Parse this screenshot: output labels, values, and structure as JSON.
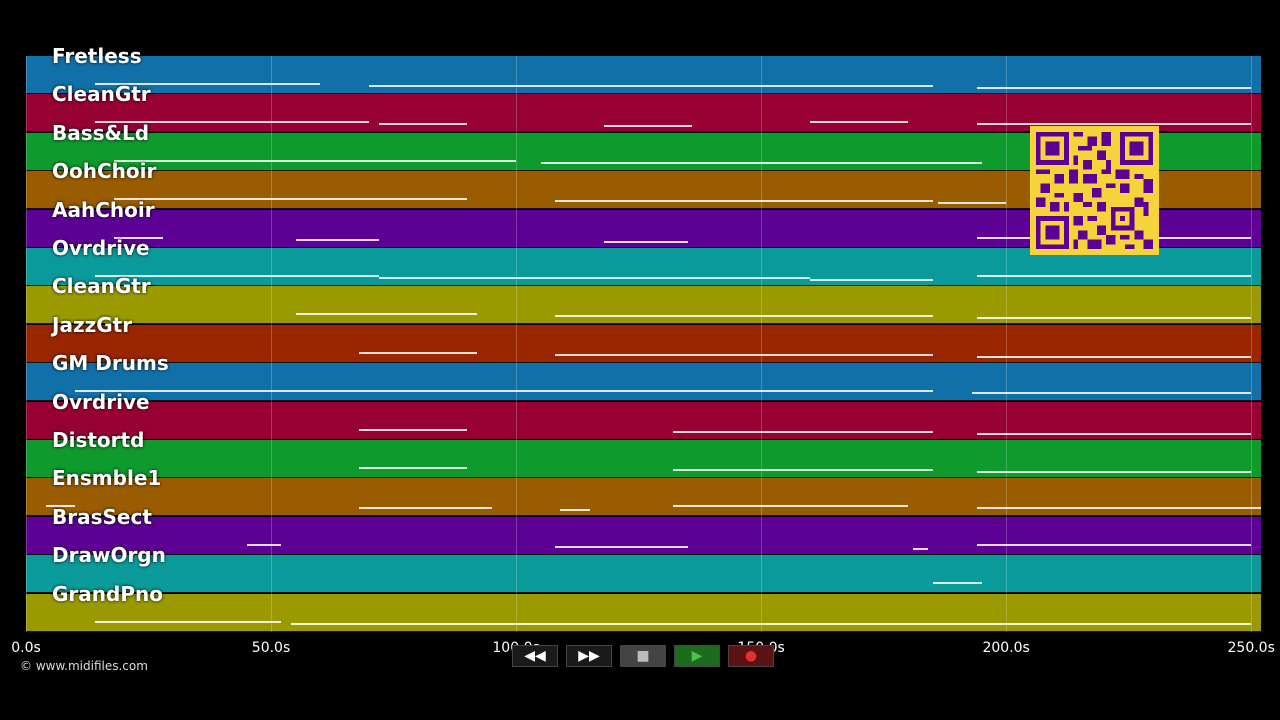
{
  "tracks": [
    {
      "name": "Fretless",
      "color": "#1170a8"
    },
    {
      "name": "CleanGtr",
      "color": "#960033"
    },
    {
      "name": "Bass&Ld",
      "color": "#0e9a2c"
    },
    {
      "name": "OohChoir",
      "color": "#9a5c00"
    },
    {
      "name": "AahChoir",
      "color": "#5d0094"
    },
    {
      "name": "Ovrdrive",
      "color": "#0a9a9a"
    },
    {
      "name": "CleanGtr",
      "color": "#9a9a00"
    },
    {
      "name": "JazzGtr",
      "color": "#9a2600"
    },
    {
      "name": "GM Drums",
      "color": "#1170a8"
    },
    {
      "name": "Ovrdrive",
      "color": "#960033"
    },
    {
      "name": "Distortd",
      "color": "#0e9a2c"
    },
    {
      "name": "Ensmble1",
      "color": "#9a5c00"
    },
    {
      "name": "BrasSect",
      "color": "#5d0094"
    },
    {
      "name": "DrawOrgn",
      "color": "#0a9a9a"
    },
    {
      "name": "GrandPno",
      "color": "#9a9a00"
    }
  ],
  "time_axis": {
    "max_seconds": 252,
    "ticks": [
      {
        "value": 0,
        "label": "0.0s"
      },
      {
        "value": 50,
        "label": "50.0s"
      },
      {
        "value": 100,
        "label": "100.0s"
      },
      {
        "value": 150,
        "label": "150.0s"
      },
      {
        "value": 200,
        "label": "200.0s"
      },
      {
        "value": 250,
        "label": "250.0s"
      }
    ]
  },
  "copyright": "© www.midifiles.com",
  "controls": {
    "rewind_icon": "◀◀",
    "forward_icon": "▶▶",
    "stop_icon": "■",
    "play_icon": "▶",
    "record_icon": "●",
    "play_color": "#4ec04e",
    "record_color": "#e03030"
  },
  "note_segments": [
    [
      [
        14,
        60
      ],
      [
        70,
        185
      ],
      [
        194,
        250
      ]
    ],
    [
      [
        14,
        70
      ],
      [
        72,
        90
      ],
      [
        118,
        136
      ],
      [
        160,
        180
      ],
      [
        194,
        250
      ]
    ],
    [
      [
        18,
        100
      ],
      [
        105,
        195
      ]
    ],
    [
      [
        18,
        90
      ],
      [
        108,
        185
      ],
      [
        186,
        200
      ]
    ],
    [
      [
        18,
        28
      ],
      [
        55,
        72
      ],
      [
        118,
        135
      ],
      [
        194,
        250
      ]
    ],
    [
      [
        14,
        72
      ],
      [
        72,
        160
      ],
      [
        160,
        185
      ],
      [
        194,
        250
      ]
    ],
    [
      [
        55,
        92
      ],
      [
        108,
        185
      ],
      [
        194,
        250
      ]
    ],
    [
      [
        68,
        92
      ],
      [
        108,
        185
      ],
      [
        194,
        250
      ]
    ],
    [
      [
        10,
        185
      ],
      [
        193,
        250
      ]
    ],
    [
      [
        68,
        90
      ],
      [
        132,
        185
      ],
      [
        194,
        250
      ]
    ],
    [
      [
        68,
        90
      ],
      [
        132,
        185
      ],
      [
        194,
        250
      ]
    ],
    [
      [
        4,
        10
      ],
      [
        68,
        95
      ],
      [
        109,
        115
      ],
      [
        132,
        180
      ],
      [
        194,
        252
      ]
    ],
    [
      [
        45,
        52
      ],
      [
        108,
        135
      ],
      [
        181,
        184
      ],
      [
        194,
        250
      ]
    ],
    [
      [
        185,
        195
      ]
    ],
    [
      [
        14,
        52
      ],
      [
        54,
        250
      ]
    ]
  ]
}
